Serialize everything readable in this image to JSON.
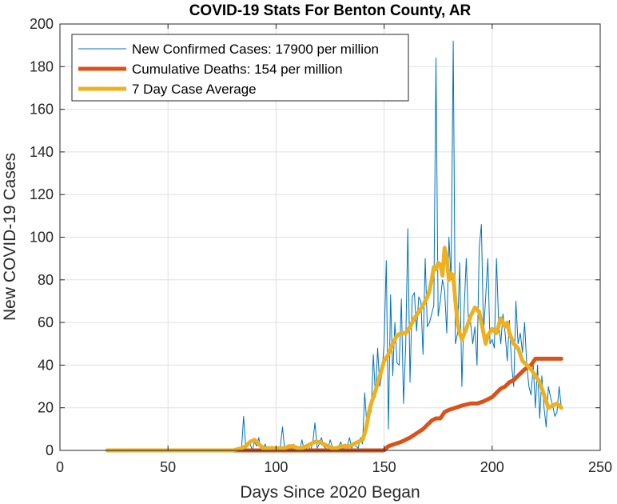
{
  "chart_data": {
    "type": "line",
    "title": "COVID-19 Stats For Benton County, AR",
    "xlabel": "Days Since 2020 Began",
    "ylabel": "New COVID-19 Cases",
    "xlim": [
      0,
      250
    ],
    "ylim": [
      0,
      200
    ],
    "xticks": [
      0,
      50,
      100,
      150,
      200,
      250
    ],
    "yticks": [
      0,
      20,
      40,
      60,
      80,
      100,
      120,
      140,
      160,
      180,
      200
    ],
    "grid": true,
    "legend_position": "top-left",
    "series": [
      {
        "name": "New Confirmed Cases: 17900 per million",
        "color": "#0072BD",
        "style": "thin",
        "x": [
          22,
          40,
          60,
          80,
          84,
          85,
          86,
          87,
          88,
          89,
          90,
          91,
          92,
          93,
          94,
          95,
          96,
          97,
          98,
          99,
          100,
          101,
          102,
          103,
          104,
          105,
          106,
          107,
          108,
          109,
          110,
          111,
          112,
          113,
          114,
          115,
          116,
          117,
          118,
          119,
          120,
          121,
          122,
          123,
          124,
          125,
          126,
          127,
          128,
          129,
          130,
          131,
          132,
          133,
          134,
          135,
          136,
          137,
          138,
          139,
          140,
          141,
          142,
          143,
          144,
          145,
          146,
          147,
          148,
          149,
          150,
          151,
          152,
          153,
          154,
          155,
          156,
          157,
          158,
          159,
          160,
          161,
          162,
          163,
          164,
          165,
          166,
          167,
          168,
          169,
          170,
          171,
          172,
          173,
          174,
          175,
          176,
          177,
          178,
          179,
          180,
          181,
          182,
          183,
          184,
          185,
          186,
          187,
          188,
          189,
          190,
          191,
          192,
          193,
          194,
          195,
          196,
          197,
          198,
          199,
          200,
          201,
          202,
          203,
          204,
          205,
          206,
          207,
          208,
          209,
          210,
          211,
          212,
          213,
          214,
          215,
          216,
          217,
          218,
          219,
          220,
          221,
          222,
          223,
          224,
          225,
          226,
          227,
          228,
          229,
          230,
          231,
          232
        ],
        "y": [
          0,
          0,
          0,
          0,
          0,
          16,
          1,
          2,
          3,
          0,
          4,
          2,
          6,
          0,
          1,
          3,
          0,
          1,
          2,
          0,
          1,
          0,
          2,
          11,
          0,
          2,
          0,
          1,
          3,
          0,
          2,
          0,
          5,
          0,
          1,
          2,
          0,
          4,
          13,
          1,
          3,
          6,
          2,
          1,
          0,
          5,
          2,
          1,
          0,
          2,
          4,
          0,
          3,
          2,
          6,
          1,
          3,
          2,
          1,
          6,
          3,
          27,
          12,
          20,
          18,
          45,
          25,
          48,
          30,
          36,
          50,
          89,
          10,
          73,
          35,
          60,
          41,
          40,
          71,
          22,
          49,
          104,
          32,
          72,
          74,
          56,
          72,
          70,
          45,
          90,
          58,
          60,
          64,
          68,
          184,
          63,
          70,
          80,
          75,
          55,
          100,
          80,
          192,
          50,
          55,
          88,
          30,
          65,
          90,
          60,
          60,
          50,
          58,
          40,
          95,
          106,
          55,
          72,
          90,
          50,
          52,
          48,
          90,
          60,
          50,
          64,
          55,
          42,
          61,
          40,
          30,
          70,
          50,
          55,
          46,
          60,
          40,
          30,
          26,
          40,
          20,
          40,
          15,
          35,
          20,
          11,
          30,
          25,
          21,
          16,
          18,
          30,
          20
        ]
      },
      {
        "name": "Cumulative Deaths: 154 per million",
        "color": "#D95319",
        "style": "thick",
        "x": [
          22,
          40,
          60,
          80,
          100,
          120,
          140,
          150,
          152,
          155,
          158,
          162,
          165,
          168,
          170,
          172,
          174,
          176,
          178,
          180,
          183,
          186,
          190,
          193,
          196,
          200,
          202,
          204,
          206,
          208,
          210,
          212,
          215,
          218,
          220,
          225,
          230,
          232
        ],
        "y": [
          0,
          0,
          0,
          0,
          0,
          0,
          0,
          0,
          2,
          3,
          4,
          6,
          8,
          10,
          12,
          14,
          15,
          15,
          18,
          19,
          20,
          21,
          22,
          22,
          23,
          25,
          27,
          29,
          30,
          32,
          33,
          35,
          38,
          40,
          43,
          43,
          43,
          43
        ]
      },
      {
        "name": "7 Day Case Average",
        "color": "#EDB120",
        "style": "thick",
        "x": [
          22,
          40,
          60,
          80,
          84,
          86,
          88,
          90,
          92,
          94,
          96,
          98,
          100,
          102,
          104,
          106,
          108,
          110,
          112,
          114,
          116,
          118,
          120,
          122,
          124,
          126,
          128,
          130,
          132,
          134,
          136,
          138,
          140,
          141,
          142,
          143,
          144,
          146,
          148,
          150,
          152,
          154,
          156,
          158,
          160,
          162,
          164,
          166,
          168,
          170,
          171,
          172,
          173,
          174,
          175,
          176,
          177,
          178,
          179,
          180,
          181,
          182,
          183,
          184,
          185,
          186,
          188,
          190,
          192,
          194,
          196,
          197,
          198,
          200,
          202,
          204,
          206,
          207,
          208,
          210,
          212,
          214,
          216,
          218,
          220,
          222,
          224,
          226,
          228,
          230,
          232
        ],
        "y": [
          0,
          0,
          0,
          0,
          1,
          2,
          4,
          5,
          3,
          1,
          1,
          1,
          1,
          1,
          1,
          2,
          2,
          1,
          1,
          2,
          3,
          4,
          4,
          3,
          2,
          1,
          1,
          2,
          2,
          2,
          3,
          4,
          5,
          8,
          12,
          18,
          22,
          28,
          35,
          42,
          45,
          50,
          54,
          55,
          55,
          58,
          62,
          65,
          68,
          72,
          75,
          80,
          86,
          85,
          88,
          87,
          82,
          95,
          90,
          80,
          83,
          82,
          70,
          60,
          55,
          52,
          57,
          63,
          67,
          65,
          55,
          50,
          54,
          57,
          55,
          62,
          58,
          60,
          55,
          50,
          48,
          42,
          40,
          38,
          35,
          32,
          26,
          20,
          21,
          22,
          20
        ]
      }
    ]
  }
}
